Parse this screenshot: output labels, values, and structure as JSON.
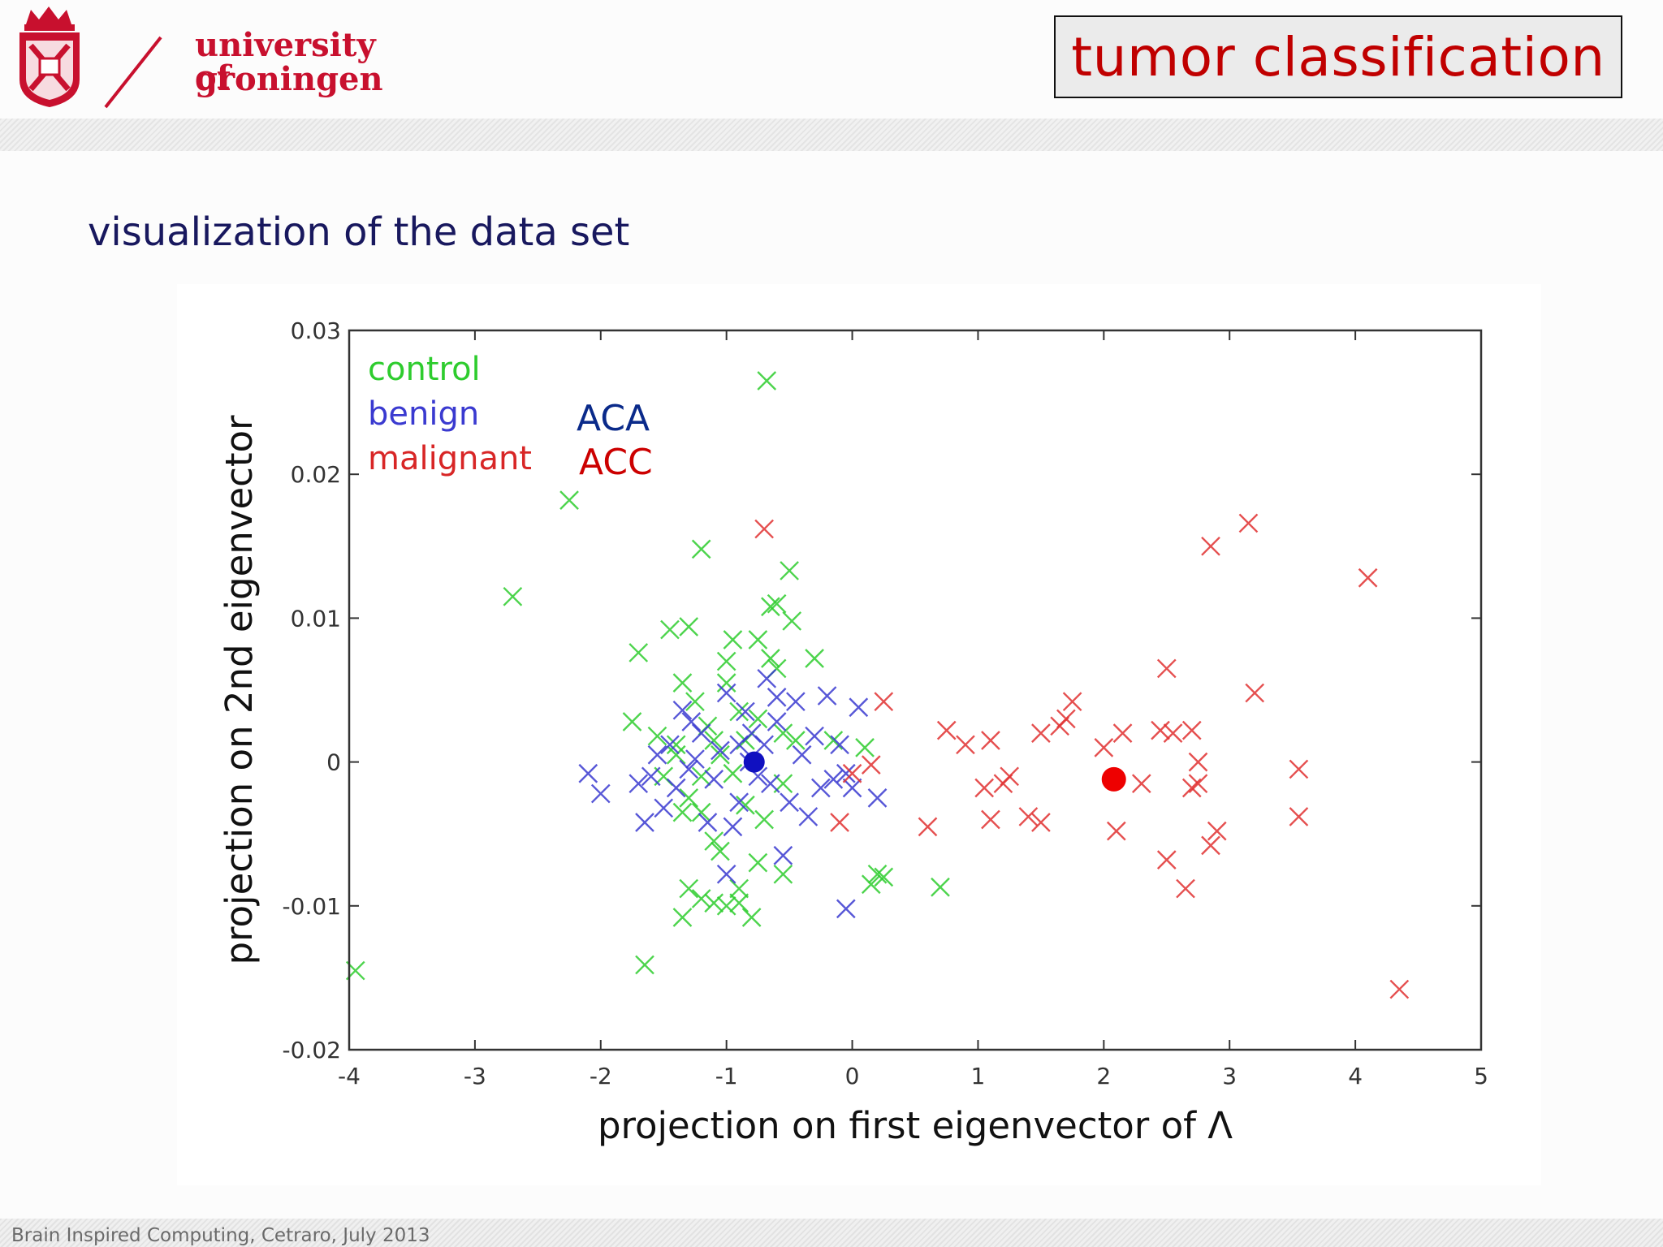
{
  "branding": {
    "university_line1": "university of",
    "university_line2": "groningen"
  },
  "slide": {
    "title": "tumor classification",
    "subtitle": "visualization of the data set",
    "footer": "Brain Inspired Computing, Cetraro, July 2013"
  },
  "chart_data": {
    "type": "scatter",
    "xlabel": "projection on first eigenvector of Λ",
    "ylabel": "projection on 2nd eigenvector",
    "xlim": [
      -4,
      5
    ],
    "ylim": [
      -0.02,
      0.03
    ],
    "xticks": [
      "-4",
      "-3",
      "-2",
      "-1",
      "0",
      "1",
      "2",
      "3",
      "4",
      "5"
    ],
    "yticks": [
      "0.03",
      "0.02",
      "0.01",
      "0",
      "-0.01",
      "-0.02"
    ],
    "grid": false,
    "legend_position": "top-left",
    "legend_entries": [
      "control",
      "benign",
      "malignant"
    ],
    "annotations": {
      "benign_abbrev": "ACA",
      "malignant_abbrev": "ACC"
    },
    "colors": {
      "control": "#2ecc2e",
      "benign": "#3a3ad0",
      "malignant": "#e03030",
      "aca_label": "#0a2a8a",
      "acc_label": "#cc0000"
    },
    "series": [
      {
        "name": "control",
        "marker": "x",
        "points": [
          [
            -3.95,
            -0.0145
          ],
          [
            -2.7,
            0.0115
          ],
          [
            -2.25,
            0.0182
          ],
          [
            -1.65,
            -0.0141
          ],
          [
            -1.7,
            0.0076
          ],
          [
            -1.75,
            0.0028
          ],
          [
            -1.45,
            0.0092
          ],
          [
            -1.3,
            0.0094
          ],
          [
            -1.2,
            0.0148
          ],
          [
            -1.35,
            0.0055
          ],
          [
            -1.25,
            0.0042
          ],
          [
            -1.55,
            0.0018
          ],
          [
            -1.4,
            0.0012
          ],
          [
            -1.5,
            -0.001
          ],
          [
            -1.3,
            -0.0025
          ],
          [
            -1.2,
            -0.0035
          ],
          [
            -1.1,
            -0.0055
          ],
          [
            -1.35,
            -0.0035
          ],
          [
            -1.4,
            0.0005
          ],
          [
            -1.15,
            0.0025
          ],
          [
            -1.0,
            0.0055
          ],
          [
            -0.95,
            0.0085
          ],
          [
            -1.0,
            0.007
          ],
          [
            -0.75,
            0.0085
          ],
          [
            -0.65,
            0.0072
          ],
          [
            -0.6,
            0.0065
          ],
          [
            -0.65,
            0.0108
          ],
          [
            -0.6,
            0.011
          ],
          [
            -0.5,
            0.0133
          ],
          [
            -0.48,
            0.0098
          ],
          [
            -0.3,
            0.0072
          ],
          [
            -0.68,
            0.0265
          ],
          [
            -1.3,
            -0.0088
          ],
          [
            -1.2,
            -0.0095
          ],
          [
            -1.1,
            -0.0098
          ],
          [
            -1.0,
            -0.01
          ],
          [
            -0.9,
            -0.0098
          ],
          [
            -1.35,
            -0.0108
          ],
          [
            -0.8,
            -0.0108
          ],
          [
            -0.9,
            -0.0088
          ],
          [
            -0.75,
            -0.007
          ],
          [
            -1.05,
            -0.0062
          ],
          [
            -0.85,
            -0.003
          ],
          [
            -0.95,
            -0.0008
          ],
          [
            -1.05,
            0.0005
          ],
          [
            -0.75,
            0.003
          ],
          [
            -0.55,
            0.002
          ],
          [
            -0.45,
            0.0015
          ],
          [
            -0.55,
            -0.0015
          ],
          [
            -0.7,
            -0.004
          ],
          [
            -0.55,
            -0.0078
          ],
          [
            -0.85,
            0.0015
          ],
          [
            -1.1,
            0.0015
          ],
          [
            -0.9,
            0.0035
          ],
          [
            -1.2,
            -0.001
          ],
          [
            0.15,
            -0.0085
          ],
          [
            0.25,
            -0.008
          ],
          [
            0.2,
            -0.0078
          ],
          [
            0.7,
            -0.0087
          ],
          [
            0.1,
            0.001
          ],
          [
            -0.15,
            0.0015
          ]
        ]
      },
      {
        "name": "benign",
        "marker": "x",
        "points": [
          [
            -2.1,
            -0.0008
          ],
          [
            -2.0,
            -0.0022
          ],
          [
            -1.7,
            -0.0015
          ],
          [
            -1.65,
            -0.0042
          ],
          [
            -1.6,
            -0.001
          ],
          [
            -1.5,
            -0.0032
          ],
          [
            -1.45,
            0.0012
          ],
          [
            -1.4,
            -0.0018
          ],
          [
            -1.35,
            0.0036
          ],
          [
            -1.3,
            -0.0005
          ],
          [
            -1.25,
            0.0002
          ],
          [
            -1.2,
            0.002
          ],
          [
            -1.15,
            -0.0042
          ],
          [
            -1.1,
            -0.0012
          ],
          [
            -1.05,
            0.0008
          ],
          [
            -1.0,
            0.0048
          ],
          [
            -0.95,
            -0.0045
          ],
          [
            -0.9,
            -0.0028
          ],
          [
            -0.85,
            0.0035
          ],
          [
            -0.82,
            0.0
          ],
          [
            -0.8,
            0.002
          ],
          [
            -0.75,
            -0.001
          ],
          [
            -0.7,
            0.0012
          ],
          [
            -0.68,
            0.0058
          ],
          [
            -0.65,
            -0.0015
          ],
          [
            -0.6,
            0.0028
          ],
          [
            -0.55,
            -0.0065
          ],
          [
            -0.5,
            -0.0028
          ],
          [
            -0.45,
            0.0042
          ],
          [
            -0.4,
            0.0005
          ],
          [
            -0.35,
            -0.0038
          ],
          [
            -0.3,
            0.0018
          ],
          [
            -0.25,
            -0.0018
          ],
          [
            -0.2,
            0.0046
          ],
          [
            -0.15,
            -0.0012
          ],
          [
            -0.1,
            0.0012
          ],
          [
            -0.05,
            -0.0008
          ],
          [
            0.0,
            -0.0018
          ],
          [
            0.05,
            0.0038
          ],
          [
            0.2,
            -0.0025
          ],
          [
            -0.05,
            -0.0102
          ],
          [
            -1.0,
            -0.0078
          ],
          [
            -1.55,
            0.0005
          ],
          [
            -1.28,
            0.0028
          ],
          [
            -0.9,
            0.0012
          ],
          [
            -0.6,
            0.0045
          ]
        ]
      },
      {
        "name": "malignant",
        "marker": "x",
        "points": [
          [
            -0.7,
            0.0162
          ],
          [
            -0.1,
            -0.0042
          ],
          [
            0.0,
            -0.0008
          ],
          [
            0.15,
            -0.0002
          ],
          [
            0.25,
            0.0042
          ],
          [
            0.6,
            -0.0045
          ],
          [
            0.75,
            0.0022
          ],
          [
            0.9,
            0.0012
          ],
          [
            1.05,
            -0.0018
          ],
          [
            1.1,
            -0.004
          ],
          [
            1.1,
            0.0015
          ],
          [
            1.2,
            -0.0015
          ],
          [
            1.25,
            -0.001
          ],
          [
            1.4,
            -0.0038
          ],
          [
            1.5,
            -0.0042
          ],
          [
            1.5,
            0.002
          ],
          [
            1.65,
            0.0025
          ],
          [
            1.7,
            0.003
          ],
          [
            1.75,
            0.0042
          ],
          [
            2.0,
            0.001
          ],
          [
            2.1,
            -0.0048
          ],
          [
            2.15,
            0.002
          ],
          [
            2.3,
            -0.0015
          ],
          [
            2.45,
            0.0022
          ],
          [
            2.5,
            0.0065
          ],
          [
            2.5,
            -0.0068
          ],
          [
            2.55,
            0.002
          ],
          [
            2.65,
            -0.0088
          ],
          [
            2.7,
            0.0022
          ],
          [
            2.7,
            -0.0018
          ],
          [
            2.75,
            0.0
          ],
          [
            2.75,
            -0.0015
          ],
          [
            2.85,
            -0.0058
          ],
          [
            2.9,
            -0.0048
          ],
          [
            2.85,
            0.015
          ],
          [
            3.15,
            0.0166
          ],
          [
            3.2,
            0.0048
          ],
          [
            3.55,
            -0.0005
          ],
          [
            3.55,
            -0.0038
          ],
          [
            4.1,
            0.0128
          ],
          [
            4.35,
            -0.0158
          ]
        ]
      }
    ],
    "highlight_points": [
      {
        "series": "benign",
        "x": -0.78,
        "y": 0.0
      },
      {
        "series": "malignant",
        "x": 2.08,
        "y": -0.0012
      }
    ]
  }
}
